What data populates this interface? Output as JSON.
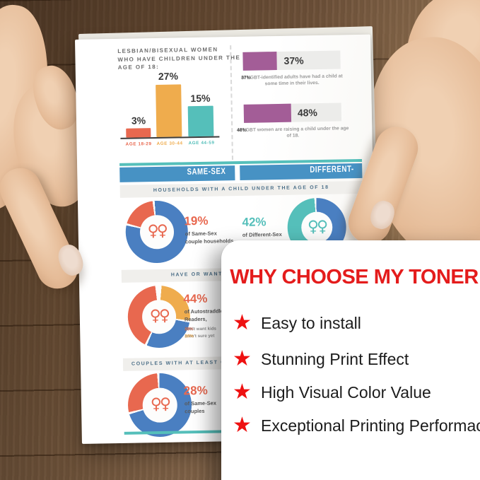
{
  "infographic": {
    "title_lines": [
      "LESBIAN/BISEXUAL WOMEN",
      "WHO HAVE CHILDREN UNDER THE",
      "AGE OF 18:"
    ],
    "bar_chart": {
      "type": "bar",
      "categories": [
        "AGE 18-29",
        "AGE 30-44",
        "AGE 44-59"
      ],
      "values": [
        3,
        27,
        15
      ],
      "value_labels": [
        "3%",
        "27%",
        "15%"
      ],
      "colors": [
        "#e8684f",
        "#efac4d",
        "#55bfba"
      ]
    },
    "lgbt_stats": [
      {
        "value": "37%",
        "pct": 37,
        "caption_pct": "37%",
        "caption_rest": " of LGBT-identified adults have had a child at some time in their lives."
      },
      {
        "value": "48%",
        "pct": 48,
        "caption_pct": "48%",
        "caption_rest": " of LGBT women are raising a child under the age of 18."
      }
    ],
    "ribbons": [
      "SAME-SEX COUPLES",
      "DIFFERENT-SEX COUPLES"
    ],
    "section_headers": [
      "HOUSEHOLDS WITH A CHILD UNDER THE AGE OF 18",
      "HAVE OR WANT T",
      "COUPLES WITH AT LEAST ONE"
    ],
    "venus_pair": "♀♀",
    "donuts": [
      {
        "type": "donut",
        "pct": "19%",
        "value": 19,
        "desc_lines": [
          "of Same-Sex",
          "couple households"
        ],
        "colors": [
          "#e8684f",
          "#4a7fc1"
        ]
      },
      {
        "type": "donut",
        "pct": "42%",
        "value": 42,
        "desc_lines": [
          "of Different-Sex"
        ],
        "colors": [
          "#55bfba",
          "#4a7fc1"
        ]
      },
      {
        "type": "donut",
        "pct": "44%",
        "value": 44,
        "desc_lines": [
          "of Autostraddle",
          "Readers,"
        ],
        "sub_stats": [
          {
            "pct": "28%",
            "text": " don't want kids"
          },
          {
            "pct": "26%",
            "text": " aren't sure yet"
          }
        ],
        "colors": [
          "#e8684f",
          "#efac4d",
          "#4a7fc1"
        ]
      },
      {
        "type": "donut",
        "pct": "28%",
        "value": 28,
        "desc_lines": [
          "of Same-Sex",
          "couples"
        ],
        "colors": [
          "#e8684f",
          "#4a7fc1"
        ]
      }
    ]
  },
  "card": {
    "title": "WHY CHOOSE MY TONER",
    "star": "★",
    "bullets": [
      "Easy to install",
      "Stunning Print Effect",
      "High Visual Color Value",
      "Exceptional Printing Performace"
    ]
  },
  "colors": {
    "salmon": "#e8684f",
    "orange": "#efac4d",
    "teal": "#55bfba",
    "blue": "#4a7fc1",
    "purple": "#a35d97",
    "ribbon_blue": "#4792c4",
    "card_red": "#e41c1c",
    "star_red": "#ee1111"
  }
}
